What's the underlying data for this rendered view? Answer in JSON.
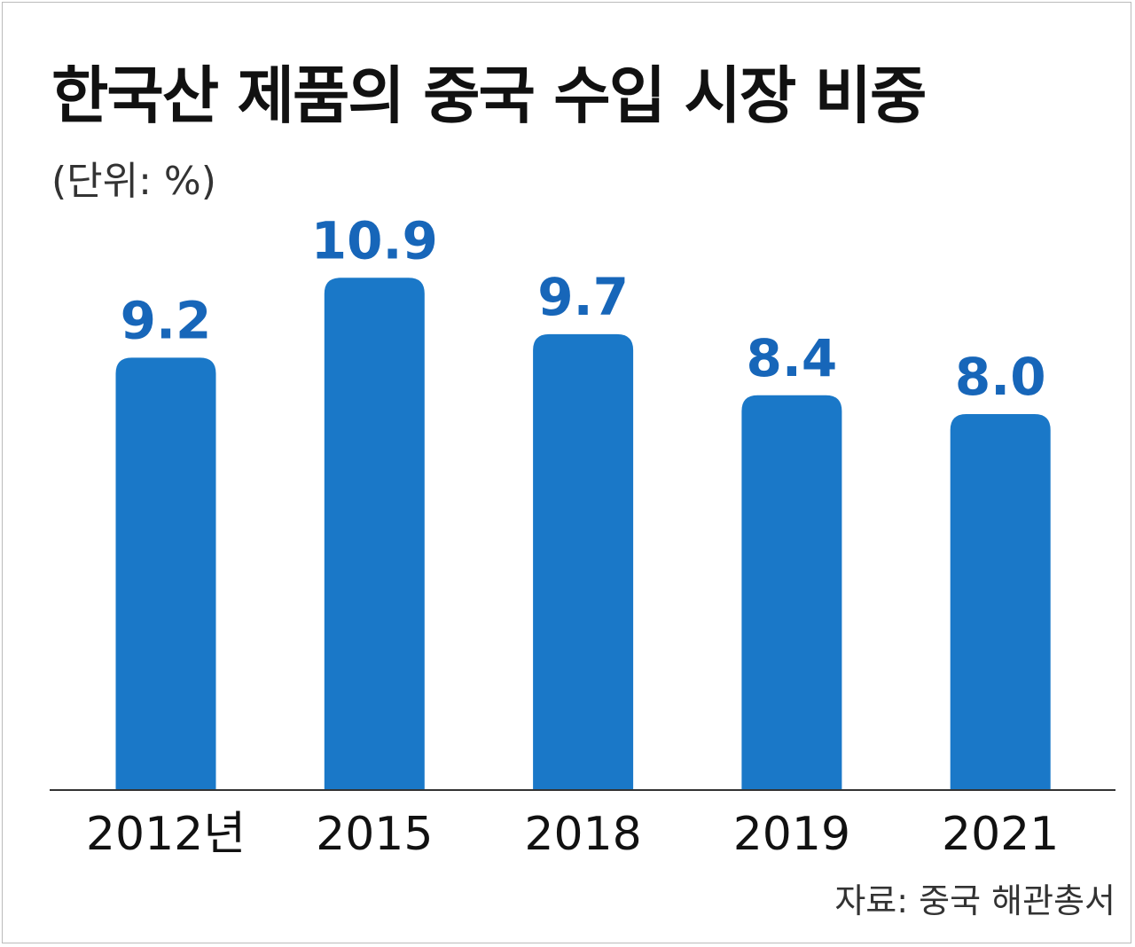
{
  "chart_data": {
    "type": "bar",
    "title": "한국산 제품의 중국 수입 시장 비중",
    "unit_label": "(단위: %)",
    "categories": [
      "2012년",
      "2015",
      "2018",
      "2019",
      "2021"
    ],
    "values": [
      9.2,
      10.9,
      9.7,
      8.4,
      8.0
    ],
    "value_labels": [
      "9.2",
      "10.9",
      "9.7",
      "8.4",
      "8.0"
    ],
    "source": "자료: 중국 해관총서",
    "ylim": [
      0,
      10.9
    ],
    "grid": false,
    "legend": "none",
    "colors": {
      "bar": "#1a78c8",
      "value_label": "#1766b9",
      "axis": "#333333"
    }
  }
}
